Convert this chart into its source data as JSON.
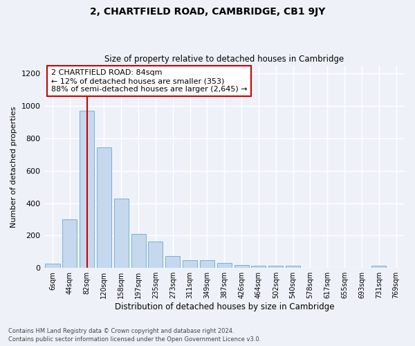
{
  "title": "2, CHARTFIELD ROAD, CAMBRIDGE, CB1 9JY",
  "subtitle": "Size of property relative to detached houses in Cambridge",
  "xlabel": "Distribution of detached houses by size in Cambridge",
  "ylabel": "Number of detached properties",
  "footer_line1": "Contains HM Land Registry data © Crown copyright and database right 2024.",
  "footer_line2": "Contains public sector information licensed under the Open Government Licence v3.0.",
  "bar_labels": [
    "6sqm",
    "44sqm",
    "82sqm",
    "120sqm",
    "158sqm",
    "197sqm",
    "235sqm",
    "273sqm",
    "311sqm",
    "349sqm",
    "387sqm",
    "426sqm",
    "464sqm",
    "502sqm",
    "540sqm",
    "578sqm",
    "617sqm",
    "655sqm",
    "693sqm",
    "731sqm",
    "769sqm"
  ],
  "bar_values": [
    25,
    300,
    970,
    745,
    430,
    210,
    165,
    75,
    48,
    48,
    32,
    18,
    12,
    12,
    14,
    0,
    0,
    0,
    0,
    12,
    0
  ],
  "bar_color": "#c5d8ed",
  "bar_edge_color": "#7aafd4",
  "ylim": [
    0,
    1250
  ],
  "yticks": [
    0,
    200,
    400,
    600,
    800,
    1000,
    1200
  ],
  "subject_bar_index": 2,
  "subject_line_color": "#cc0000",
  "annotation_text": "2 CHARTFIELD ROAD: 84sqm\n← 12% of detached houses are smaller (353)\n88% of semi-detached houses are larger (2,645) →",
  "annotation_box_color": "#ffffff",
  "annotation_box_edge_color": "#cc0000",
  "background_color": "#eef2f8"
}
